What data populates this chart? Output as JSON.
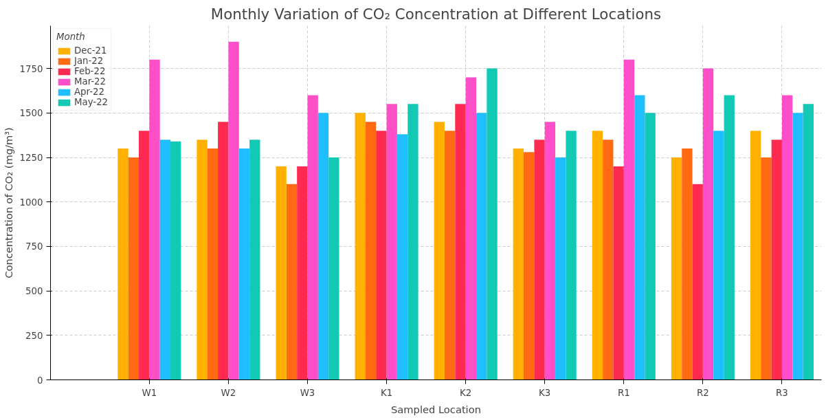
{
  "chart_data": {
    "type": "bar",
    "title": "Monthly Variation of CO₂ Concentration at Different Locations",
    "xlabel": "Sampled Location",
    "ylabel": "Concentration of CO₂ (mg/m³)",
    "legend_title": "Month",
    "categories": [
      "W1",
      "W2",
      "W3",
      "K1",
      "K2",
      "K3",
      "R1",
      "R2",
      "R3"
    ],
    "series": [
      {
        "name": "Dec-21",
        "color": "#ffb000",
        "values": [
          1300,
          1350,
          1200,
          1500,
          1450,
          1300,
          1400,
          1250,
          1400
        ]
      },
      {
        "name": "Jan-22",
        "color": "#ff6a13",
        "values": [
          1250,
          1300,
          1100,
          1450,
          1400,
          1280,
          1350,
          1300,
          1250
        ]
      },
      {
        "name": "Feb-22",
        "color": "#ff2a4f",
        "values": [
          1400,
          1450,
          1200,
          1400,
          1550,
          1350,
          1200,
          1100,
          1350
        ]
      },
      {
        "name": "Mar-22",
        "color": "#ff4fc8",
        "values": [
          1800,
          1900,
          1600,
          1550,
          1700,
          1450,
          1800,
          1750,
          1600
        ]
      },
      {
        "name": "Apr-22",
        "color": "#1fbfff",
        "values": [
          1350,
          1300,
          1500,
          1380,
          1500,
          1250,
          1600,
          1400,
          1500
        ]
      },
      {
        "name": "May-22",
        "color": "#12c9b6",
        "values": [
          1340,
          1350,
          1250,
          1550,
          1750,
          1400,
          1500,
          1600,
          1550
        ]
      }
    ],
    "ylim": [
      0,
      1990
    ],
    "yticks": [
      0,
      250,
      500,
      750,
      1000,
      1250,
      1500,
      1750
    ],
    "grid": true,
    "legend": "top left"
  }
}
